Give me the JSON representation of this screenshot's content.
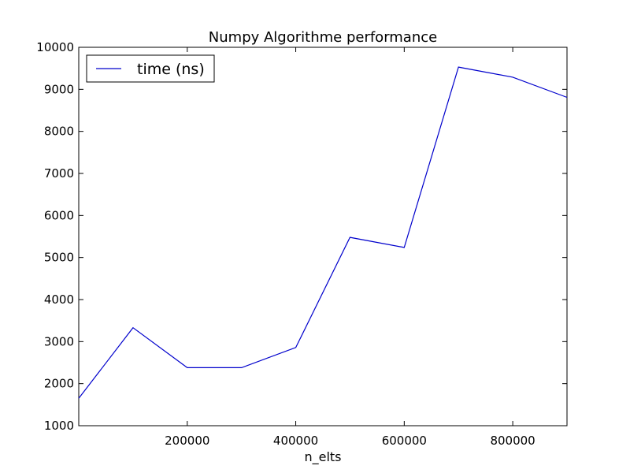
{
  "chart_data": {
    "type": "line",
    "title": "Numpy Algorithme performance",
    "xlabel": "n_elts",
    "ylabel": "",
    "xlim": [
      0,
      900000
    ],
    "ylim": [
      1000,
      10000
    ],
    "xticks": [
      200000,
      400000,
      600000,
      800000
    ],
    "yticks": [
      1000,
      2000,
      3000,
      4000,
      5000,
      6000,
      7000,
      8000,
      9000,
      10000
    ],
    "grid": false,
    "legend_position": "top-left",
    "series": [
      {
        "name": "time (ns)",
        "color": "#0000cc",
        "x": [
          0,
          100000,
          200000,
          300000,
          400000,
          500000,
          600000,
          700000,
          800000,
          900000
        ],
        "y": [
          1650,
          3330,
          2380,
          2380,
          2860,
          5480,
          5240,
          9530,
          9290,
          8810
        ]
      }
    ]
  }
}
